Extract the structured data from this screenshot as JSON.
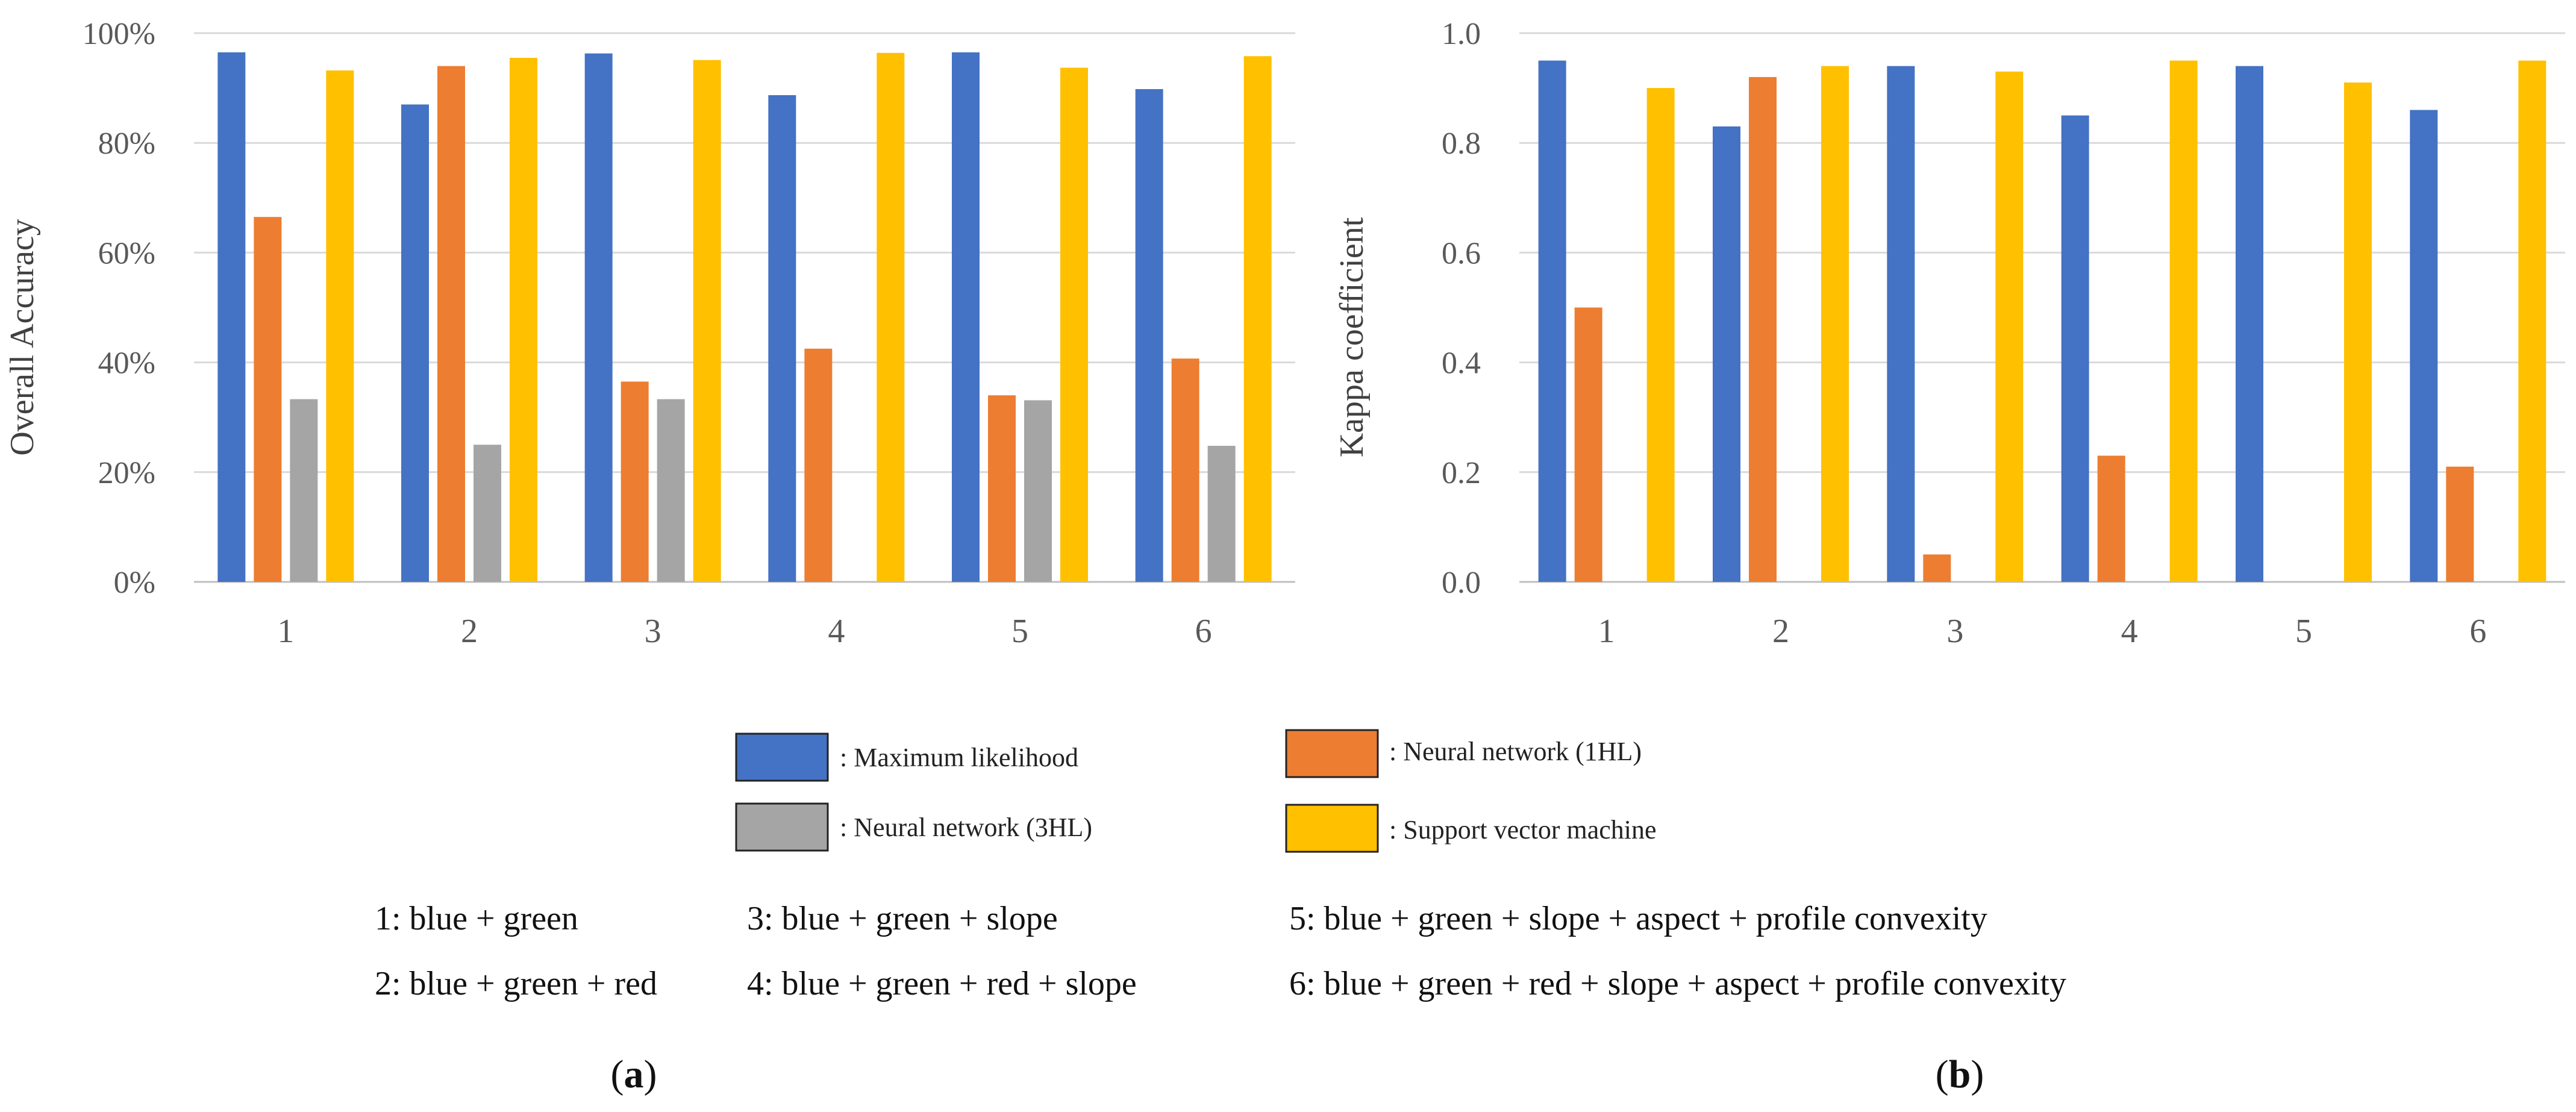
{
  "charts": [
    {
      "panel_label": "a",
      "ylabel": "Overall Accuracy",
      "tick_labels": [
        "0%",
        "20%",
        "40%",
        "60%",
        "80%",
        "100%"
      ]
    },
    {
      "panel_label": "b",
      "ylabel": "Kappa coefficient",
      "tick_labels": [
        "0.0",
        "0.2",
        "0.4",
        "0.6",
        "0.8",
        "1.0"
      ]
    }
  ],
  "legend": {
    "items": [
      {
        "label": ": Maximum likelihood",
        "color": "#4472C4"
      },
      {
        "label": ": Neural network (1HL)",
        "color": "#ED7D31"
      },
      {
        "label": ": Neural network (3HL)",
        "color": "#A5A5A5"
      },
      {
        "label": ": Support vector machine",
        "color": "#FFC000"
      }
    ]
  },
  "notes": [
    "1: blue + green",
    "2: blue + green + red",
    "3: blue + green + slope",
    "4: blue + green + red + slope",
    "5: blue + green + slope + aspect + profile convexity",
    "6: blue + green + red + slope + aspect + profile convexity"
  ],
  "chart_data": [
    {
      "type": "bar",
      "title": "",
      "xlabel": "",
      "ylabel": "Overall Accuracy",
      "categories": [
        "1",
        "2",
        "3",
        "4",
        "5",
        "6"
      ],
      "ylim": [
        0,
        100
      ],
      "unit": "%",
      "grid": true,
      "series": [
        {
          "name": "Maximum likelihood",
          "color": "#4472C4",
          "values": [
            96.5,
            87,
            96.3,
            88.7,
            96.5,
            89.8
          ]
        },
        {
          "name": "Neural network (1HL)",
          "color": "#ED7D31",
          "values": [
            66.5,
            94,
            36.5,
            42.5,
            34,
            40.7
          ]
        },
        {
          "name": "Neural network (3HL)",
          "color": "#A5A5A5",
          "values": [
            33.3,
            25,
            33.3,
            0,
            33.1,
            24.8
          ]
        },
        {
          "name": "Support vector machine",
          "color": "#FFC000",
          "values": [
            93.2,
            95.5,
            95.1,
            96.4,
            93.7,
            95.8
          ]
        }
      ]
    },
    {
      "type": "bar",
      "title": "",
      "xlabel": "",
      "ylabel": "Kappa coefficient",
      "categories": [
        "1",
        "2",
        "3",
        "4",
        "5",
        "6"
      ],
      "ylim": [
        0,
        1
      ],
      "grid": true,
      "series": [
        {
          "name": "Maximum likelihood",
          "color": "#4472C4",
          "values": [
            0.95,
            0.83,
            0.94,
            0.85,
            0.94,
            0.86
          ]
        },
        {
          "name": "Neural network (1HL)",
          "color": "#ED7D31",
          "values": [
            0.5,
            0.92,
            0.05,
            0.23,
            0,
            0.21
          ]
        },
        {
          "name": "Neural network (3HL)",
          "color": "#A5A5A5",
          "values": [
            0,
            0,
            0,
            0,
            0,
            0
          ]
        },
        {
          "name": "Support vector machine",
          "color": "#FFC000",
          "values": [
            0.9,
            0.94,
            0.93,
            0.95,
            0.91,
            0.95
          ]
        }
      ]
    }
  ]
}
